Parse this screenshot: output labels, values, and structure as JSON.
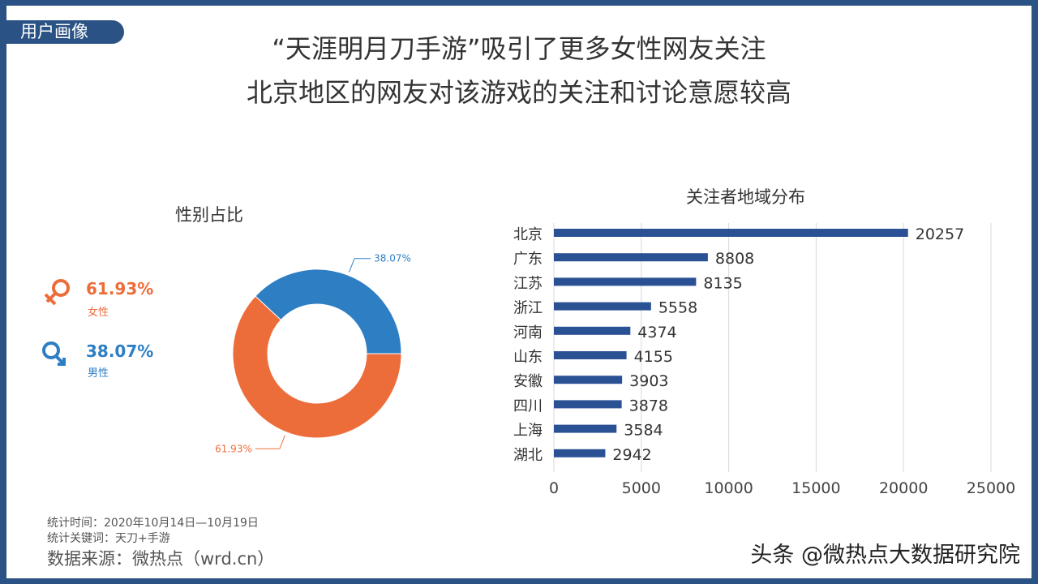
{
  "tag": "用户画像",
  "title_line1": "“天涯明月刀手游”吸引了更多女性网友关注",
  "title_line2": "北京地区的网友对该游戏的关注和讨论意愿较高",
  "legend": {
    "female_pct": "61.93%",
    "female_label": "女性",
    "male_pct": "38.07%",
    "male_label": "男性"
  },
  "footer": {
    "time": "统计时间：2020年10月14日—10月19日",
    "keywords": "统计关键词：天刀+手游",
    "source": "数据来源：微热点（wrd.cn）"
  },
  "watermark": "头条 @微热点大数据研究院",
  "colors": {
    "female": "#ed6d3a",
    "male": "#2e7ec4",
    "bar": "#2b5195",
    "frame": "#2b5284"
  },
  "chart_data": [
    {
      "type": "pie",
      "donut": true,
      "title": "性别占比",
      "categories": [
        "男性",
        "女性"
      ],
      "values": [
        38.07,
        61.93
      ],
      "labels": [
        "38.07%",
        "61.93%"
      ]
    },
    {
      "type": "bar",
      "orientation": "horizontal",
      "title": "关注者地域分布",
      "categories": [
        "北京",
        "广东",
        "江苏",
        "浙江",
        "河南",
        "山东",
        "安徽",
        "四川",
        "上海",
        "湖北"
      ],
      "values": [
        20257,
        8808,
        8135,
        5558,
        4374,
        4155,
        3903,
        3878,
        3584,
        2942
      ],
      "xlim": [
        0,
        25000
      ],
      "xticks": [
        "0",
        "5000",
        "10000",
        "15000",
        "20000",
        "25000"
      ],
      "grid": true
    }
  ]
}
